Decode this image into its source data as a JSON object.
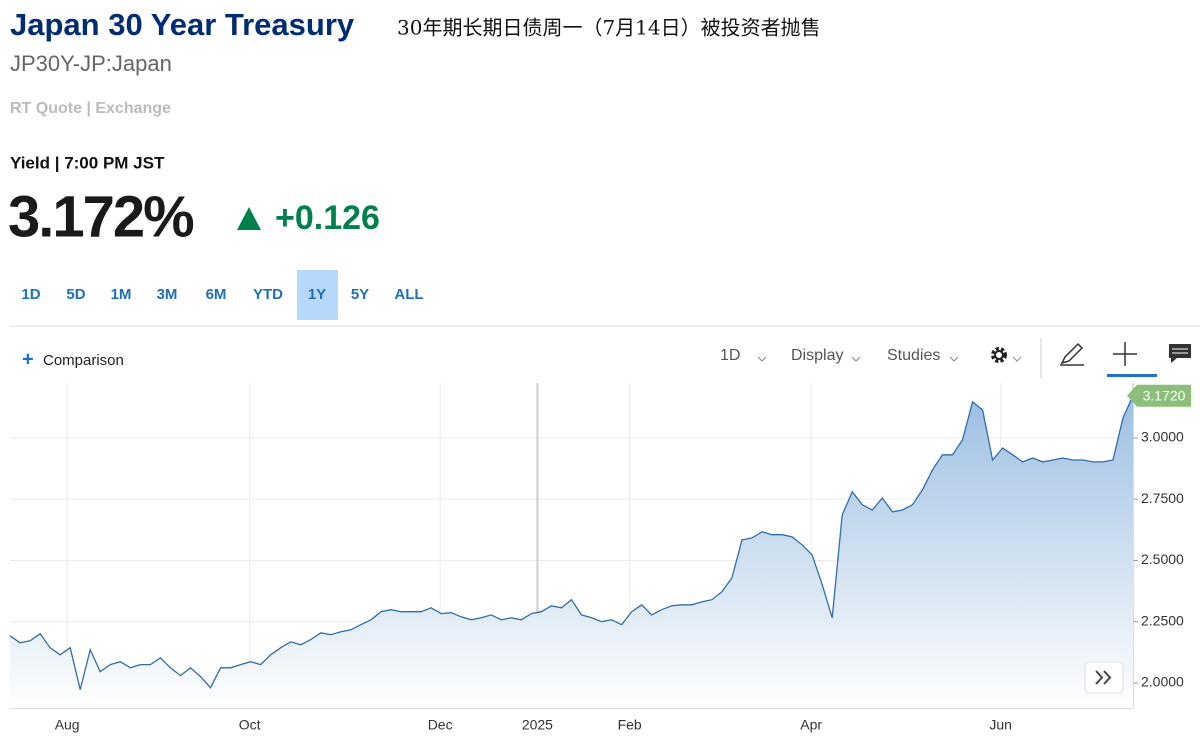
{
  "header": {
    "title": "Japan 30 Year Treasury",
    "subtitle": "30年期长期日债周一（7月14日）被投资者抛售",
    "symbol": "JP30Y-JP:Japan",
    "quote_source": "RT Quote | Exchange",
    "quote_type": "Yield | 7:00 PM JST",
    "price": "3.172%",
    "change": "+0.126"
  },
  "tabs": {
    "items": [
      "1D",
      "5D",
      "1M",
      "3M",
      "6M",
      "YTD",
      "1Y",
      "5Y",
      "ALL"
    ],
    "active": 6
  },
  "toolbar": {
    "comparison": "Comparison",
    "interval": "1D",
    "display": "Display",
    "studies": "Studies"
  },
  "chart_data": {
    "type": "area",
    "xlim": [
      0,
      112
    ],
    "xticks": [
      {
        "value": 5.7,
        "label": "Aug"
      },
      {
        "value": 23.9,
        "label": "Oct"
      },
      {
        "value": 42.9,
        "label": "Dec"
      },
      {
        "value": 52.6,
        "label": "2025"
      },
      {
        "value": 61.8,
        "label": "Feb"
      },
      {
        "value": 79.9,
        "label": "Apr"
      },
      {
        "value": 98.8,
        "label": "Jun"
      }
    ],
    "ylim": [
      1.898,
      3.224
    ],
    "yticks": [
      {
        "value": 2,
        "label": "2.0000"
      },
      {
        "value": 2.25,
        "label": "2.2500"
      },
      {
        "value": 2.5,
        "label": "2.5000"
      },
      {
        "value": 2.75,
        "label": "2.7500"
      },
      {
        "value": 3,
        "label": "3.0000"
      }
    ],
    "grid": true,
    "series": [
      {
        "color": "#2f6ea8",
        "values": [
          2.193,
          2.164,
          2.172,
          2.201,
          2.144,
          2.115,
          2.144,
          1.973,
          2.136,
          2.046,
          2.075,
          2.087,
          2.062,
          2.075,
          2.075,
          2.103,
          2.062,
          2.03,
          2.062,
          2.026,
          1.981,
          2.062,
          2.062,
          2.075,
          2.087,
          2.075,
          2.115,
          2.144,
          2.168,
          2.156,
          2.177,
          2.205,
          2.197,
          2.209,
          2.217,
          2.238,
          2.258,
          2.291,
          2.299,
          2.291,
          2.291,
          2.291,
          2.307,
          2.283,
          2.287,
          2.27,
          2.258,
          2.266,
          2.278,
          2.258,
          2.266,
          2.258,
          2.283,
          2.291,
          2.315,
          2.307,
          2.34,
          2.278,
          2.266,
          2.25,
          2.258,
          2.238,
          2.291,
          2.319,
          2.278,
          2.299,
          2.315,
          2.319,
          2.319,
          2.331,
          2.34,
          2.372,
          2.429,
          2.584,
          2.592,
          2.617,
          2.605,
          2.605,
          2.596,
          2.564,
          2.523,
          2.401,
          2.266,
          2.686,
          2.78,
          2.727,
          2.706,
          2.755,
          2.698,
          2.706,
          2.727,
          2.788,
          2.87,
          2.931,
          2.931,
          2.992,
          3.147,
          3.114,
          2.91,
          2.959,
          2.931,
          2.902,
          2.918,
          2.902,
          2.91,
          2.918,
          2.91,
          2.91,
          2.902,
          2.902,
          2.91,
          3.082,
          3.172
        ],
        "value_labels": [
          null,
          null,
          null,
          null,
          null,
          null,
          null,
          null,
          null,
          null,
          null,
          null,
          null,
          null,
          null,
          null,
          null,
          null,
          null,
          null,
          null,
          null,
          null,
          null,
          null,
          null,
          null,
          null,
          null,
          null,
          null,
          null,
          null,
          null,
          null,
          null,
          null,
          null,
          null,
          null,
          null,
          null,
          null,
          null,
          null,
          null,
          null,
          null,
          null,
          null,
          null,
          null,
          null,
          null,
          null,
          null,
          null,
          null,
          null,
          null,
          null,
          null,
          null,
          null,
          null,
          null,
          null,
          null,
          null,
          null,
          null,
          null,
          null,
          null,
          null,
          null,
          null,
          null,
          null,
          null,
          null,
          null,
          null,
          null,
          null,
          null,
          null,
          null,
          null,
          null,
          null,
          null,
          null,
          null,
          null,
          null,
          null,
          null,
          null,
          null,
          null,
          null,
          null,
          null,
          null,
          null,
          null,
          null,
          null,
          null,
          null,
          null,
          "3.1720"
        ]
      }
    ]
  }
}
